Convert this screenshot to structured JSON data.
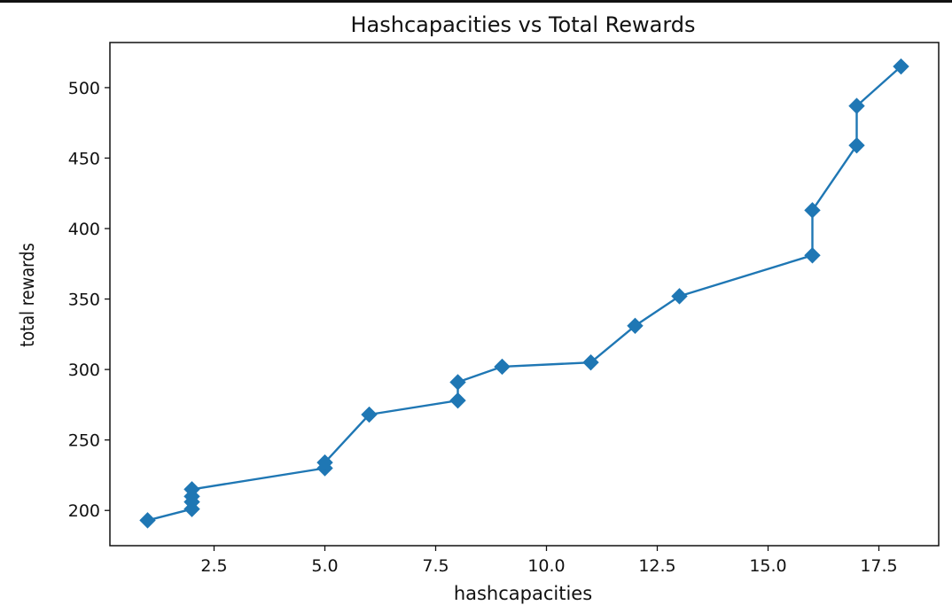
{
  "chart_data": {
    "type": "line",
    "title": "Hashcapacities vs Total Rewards",
    "xlabel": "hashcapacities",
    "ylabel": "total rewards",
    "xlim": [
      0.15,
      18.85
    ],
    "ylim": [
      175,
      532
    ],
    "xticks": [
      2.5,
      5.0,
      7.5,
      10.0,
      12.5,
      15.0,
      17.5
    ],
    "xtick_labels": [
      "2.5",
      "5.0",
      "7.5",
      "10.0",
      "12.5",
      "15.0",
      "17.5"
    ],
    "yticks": [
      200,
      250,
      300,
      350,
      400,
      450,
      500
    ],
    "ytick_labels": [
      "200",
      "250",
      "300",
      "350",
      "400",
      "450",
      "500"
    ],
    "grid": false,
    "marker": "diamond",
    "series": [
      {
        "color": "#1f77b4",
        "x": [
          1,
          2,
          2,
          2,
          2,
          5,
          5,
          6,
          8,
          8,
          9,
          11,
          12,
          13,
          16,
          16,
          17,
          17,
          18
        ],
        "y": [
          193,
          201,
          206,
          210,
          215,
          230,
          234,
          268,
          278,
          291,
          302,
          305,
          331,
          352,
          381,
          413,
          459,
          487,
          515
        ]
      }
    ]
  }
}
